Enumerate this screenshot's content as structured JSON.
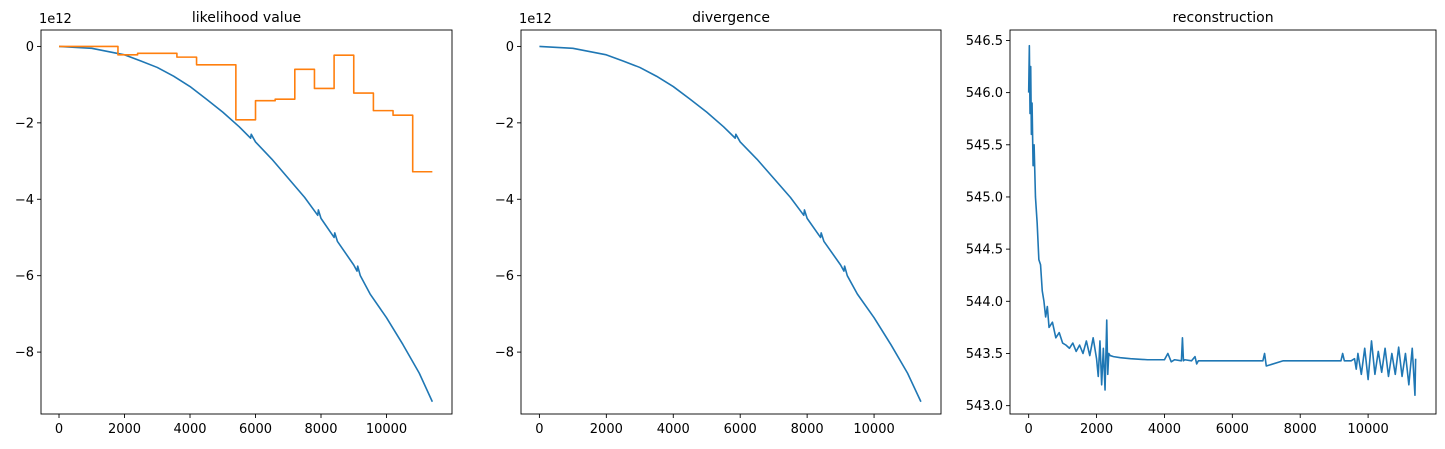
{
  "chart_data": [
    {
      "type": "line",
      "title": "likelihood value",
      "xlabel": "",
      "ylabel": "",
      "offset_text": "1e12",
      "xlim": [
        -550,
        12000
      ],
      "ylim": [
        -9.62,
        0.43
      ],
      "xticks": [
        0,
        2000,
        4000,
        6000,
        8000,
        10000
      ],
      "xtick_labels": [
        "0",
        "2000",
        "4000",
        "6000",
        "8000",
        "10000"
      ],
      "yticks": [
        0,
        -2,
        -4,
        -6,
        -8
      ],
      "ytick_labels": [
        "0",
        "−2",
        "−4",
        "−6",
        "−8"
      ],
      "grid": false,
      "series": [
        {
          "color": "#1f77b4",
          "x": [
            0,
            1000,
            2000,
            2500,
            3000,
            3500,
            4000,
            4500,
            5000,
            5500,
            5850,
            5870,
            6000,
            6500,
            7000,
            7500,
            7900,
            7920,
            8000,
            8400,
            8420,
            8500,
            9000,
            9100,
            9120,
            9200,
            9500,
            10000,
            10500,
            11000,
            11400
          ],
          "y": [
            0,
            -0.05,
            -0.22,
            -0.38,
            -0.55,
            -0.78,
            -1.05,
            -1.38,
            -1.72,
            -2.1,
            -2.4,
            -2.3,
            -2.5,
            -2.95,
            -3.45,
            -3.95,
            -4.42,
            -4.28,
            -4.5,
            -5.0,
            -4.88,
            -5.1,
            -5.72,
            -5.88,
            -5.75,
            -6.0,
            -6.48,
            -7.1,
            -7.8,
            -8.55,
            -9.3
          ]
        },
        {
          "color": "#ff7f0e",
          "x": [
            0,
            1800,
            1800,
            2400,
            2400,
            3600,
            3600,
            4200,
            4200,
            5400,
            5400,
            6000,
            6000,
            6600,
            6600,
            7200,
            7200,
            7800,
            7800,
            8400,
            8400,
            9000,
            9000,
            9600,
            9600,
            10200,
            10200,
            10800,
            10800,
            11400
          ],
          "y": [
            0.0,
            0.0,
            -0.22,
            -0.22,
            -0.18,
            -0.18,
            -0.28,
            -0.28,
            -0.48,
            -0.48,
            -1.92,
            -1.92,
            -1.42,
            -1.42,
            -1.38,
            -1.38,
            -0.6,
            -0.6,
            -1.1,
            -1.1,
            -0.23,
            -0.23,
            -1.22,
            -1.22,
            -1.68,
            -1.68,
            -1.8,
            -1.8,
            -3.28,
            -3.28
          ]
        }
      ]
    },
    {
      "type": "line",
      "title": "divergence",
      "xlabel": "",
      "ylabel": "",
      "offset_text": "1e12",
      "xlim": [
        -550,
        12000
      ],
      "ylim": [
        -9.62,
        0.43
      ],
      "xticks": [
        0,
        2000,
        4000,
        6000,
        8000,
        10000
      ],
      "xtick_labels": [
        "0",
        "2000",
        "4000",
        "6000",
        "8000",
        "10000"
      ],
      "yticks": [
        0,
        -2,
        -4,
        -6,
        -8
      ],
      "ytick_labels": [
        "0",
        "−2",
        "−4",
        "−6",
        "−8"
      ],
      "grid": false,
      "series": [
        {
          "color": "#1f77b4",
          "x": [
            0,
            1000,
            2000,
            2500,
            3000,
            3500,
            4000,
            4500,
            5000,
            5500,
            5850,
            5870,
            6000,
            6500,
            7000,
            7500,
            7900,
            7920,
            8000,
            8400,
            8420,
            8500,
            9000,
            9100,
            9120,
            9200,
            9500,
            10000,
            10500,
            11000,
            11400
          ],
          "y": [
            0,
            -0.05,
            -0.22,
            -0.38,
            -0.55,
            -0.78,
            -1.05,
            -1.38,
            -1.72,
            -2.1,
            -2.4,
            -2.3,
            -2.5,
            -2.95,
            -3.45,
            -3.95,
            -4.42,
            -4.28,
            -4.5,
            -5.0,
            -4.88,
            -5.1,
            -5.72,
            -5.88,
            -5.75,
            -6.0,
            -6.48,
            -7.1,
            -7.8,
            -8.55,
            -9.3
          ]
        }
      ]
    },
    {
      "type": "line",
      "title": "reconstruction",
      "xlabel": "",
      "ylabel": "",
      "offset_text": "",
      "xlim": [
        -550,
        12000
      ],
      "ylim": [
        542.92,
        546.6
      ],
      "xticks": [
        0,
        2000,
        4000,
        6000,
        8000,
        10000
      ],
      "xtick_labels": [
        "0",
        "2000",
        "4000",
        "6000",
        "8000",
        "10000"
      ],
      "yticks": [
        546.5,
        546.0,
        545.5,
        545.0,
        544.5,
        544.0,
        543.5,
        543.0
      ],
      "ytick_labels": [
        "546.5",
        "546.0",
        "545.5",
        "545.0",
        "544.5",
        "544.0",
        "543.5",
        "543.0"
      ],
      "grid": false,
      "series": [
        {
          "color": "#1f77b4",
          "x": [
            0,
            20,
            40,
            60,
            80,
            100,
            130,
            160,
            200,
            250,
            300,
            350,
            400,
            450,
            500,
            550,
            600,
            700,
            800,
            900,
            1000,
            1100,
            1200,
            1300,
            1400,
            1500,
            1600,
            1700,
            1800,
            1900,
            2000,
            2050,
            2100,
            2150,
            2200,
            2250,
            2300,
            2330,
            2360,
            2400,
            2500,
            2700,
            3000,
            3500,
            4000,
            4100,
            4200,
            4300,
            4500,
            4530,
            4560,
            4600,
            4800,
            4900,
            4950,
            5000,
            5500,
            6000,
            6900,
            6950,
            7000,
            7500,
            8000,
            9000,
            9200,
            9250,
            9300,
            9500,
            9600,
            9650,
            9700,
            9800,
            9900,
            10000,
            10100,
            10200,
            10300,
            10400,
            10500,
            10600,
            10700,
            10800,
            10900,
            11000,
            11100,
            11200,
            11300,
            11380,
            11400
          ],
          "y": [
            546.0,
            546.45,
            545.8,
            546.25,
            545.6,
            545.9,
            545.3,
            545.5,
            545.0,
            544.75,
            544.4,
            544.35,
            544.1,
            544.0,
            543.85,
            543.95,
            543.75,
            543.8,
            543.65,
            543.7,
            543.6,
            543.58,
            543.55,
            543.6,
            543.52,
            543.58,
            543.5,
            543.62,
            543.48,
            543.65,
            543.45,
            543.28,
            543.62,
            543.2,
            543.55,
            543.15,
            543.82,
            543.3,
            543.5,
            543.48,
            543.47,
            543.46,
            543.45,
            543.44,
            543.44,
            543.5,
            543.42,
            543.44,
            543.43,
            543.65,
            543.43,
            543.44,
            543.43,
            543.47,
            543.4,
            543.43,
            543.43,
            543.43,
            543.43,
            543.5,
            543.38,
            543.43,
            543.43,
            543.43,
            543.43,
            543.5,
            543.43,
            543.43,
            543.45,
            543.35,
            543.5,
            543.3,
            543.55,
            543.25,
            543.62,
            543.3,
            543.52,
            543.32,
            543.55,
            543.28,
            543.5,
            543.3,
            543.56,
            543.28,
            543.5,
            543.2,
            543.55,
            543.1,
            543.45
          ]
        }
      ]
    }
  ]
}
